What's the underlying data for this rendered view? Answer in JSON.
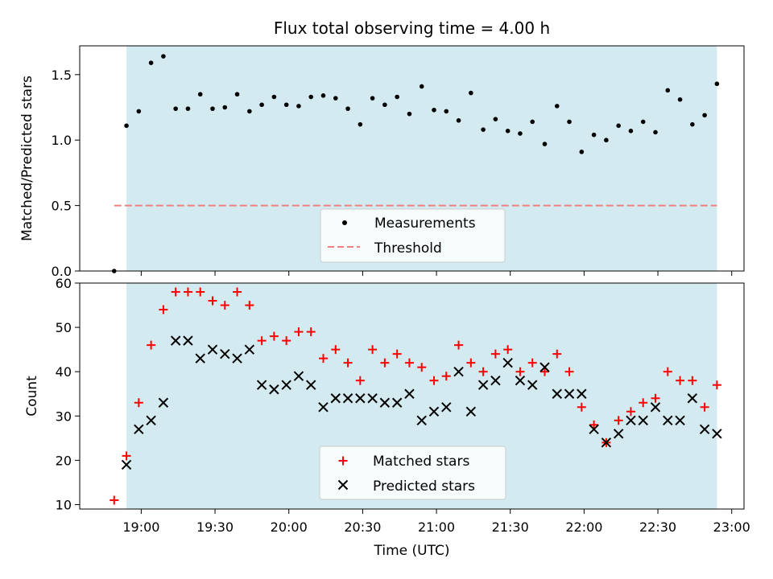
{
  "chart_data": [
    {
      "type": "scatter",
      "title": "Flux total observing time = 4.00 h",
      "ylabel": "Matched/Predicted stars",
      "xlabel": "",
      "xlim_minutes": [
        1115,
        1385
      ],
      "ylim": [
        0,
        1.72
      ],
      "yticks": [
        0.0,
        0.5,
        1.0,
        1.5
      ],
      "ytick_labels": [
        "0.0",
        "0.5",
        "1.0",
        "1.5"
      ],
      "observing_window_minutes": [
        1134,
        1374
      ],
      "threshold": 0.5,
      "shade_color": "#d3eaf0",
      "threshold_color": "#f08080",
      "x_minutes": [
        1134,
        1139,
        1144,
        1149,
        1154,
        1159,
        1164,
        1169,
        1174,
        1179,
        1184,
        1189,
        1194,
        1199,
        1204,
        1209,
        1214,
        1219,
        1224,
        1229,
        1234,
        1239,
        1244,
        1249,
        1254,
        1259,
        1264,
        1269,
        1274,
        1279,
        1284,
        1289,
        1294,
        1299,
        1304,
        1309,
        1314,
        1319,
        1324,
        1329,
        1334,
        1339,
        1344,
        1349,
        1354,
        1359,
        1364,
        1369,
        1374
      ],
      "series": [
        {
          "name": "Measurements",
          "color": "#000000",
          "marker": "dot",
          "points": [
            [
              1129,
              0.0
            ],
            [
              1134,
              1.11
            ],
            [
              1139,
              1.22
            ],
            [
              1144,
              1.59
            ],
            [
              1149,
              1.64
            ],
            [
              1154,
              1.24
            ],
            [
              1159,
              1.24
            ],
            [
              1164,
              1.35
            ],
            [
              1169,
              1.24
            ],
            [
              1174,
              1.25
            ],
            [
              1179,
              1.35
            ],
            [
              1184,
              1.22
            ],
            [
              1189,
              1.27
            ],
            [
              1194,
              1.33
            ],
            [
              1199,
              1.27
            ],
            [
              1204,
              1.26
            ],
            [
              1209,
              1.33
            ],
            [
              1214,
              1.34
            ],
            [
              1219,
              1.32
            ],
            [
              1224,
              1.24
            ],
            [
              1229,
              1.12
            ],
            [
              1234,
              1.32
            ],
            [
              1239,
              1.27
            ],
            [
              1244,
              1.33
            ],
            [
              1249,
              1.2
            ],
            [
              1254,
              1.41
            ],
            [
              1259,
              1.23
            ],
            [
              1264,
              1.22
            ],
            [
              1269,
              1.15
            ],
            [
              1274,
              1.36
            ],
            [
              1279,
              1.08
            ],
            [
              1284,
              1.16
            ],
            [
              1289,
              1.07
            ],
            [
              1294,
              1.05
            ],
            [
              1299,
              1.14
            ],
            [
              1304,
              0.97
            ],
            [
              1309,
              1.26
            ],
            [
              1314,
              1.14
            ],
            [
              1319,
              0.91
            ],
            [
              1324,
              1.04
            ],
            [
              1329,
              1.0
            ],
            [
              1334,
              1.11
            ],
            [
              1339,
              1.07
            ],
            [
              1344,
              1.14
            ],
            [
              1349,
              1.06
            ],
            [
              1354,
              1.38
            ],
            [
              1359,
              1.31
            ],
            [
              1364,
              1.12
            ],
            [
              1369,
              1.19
            ],
            [
              1374,
              1.43
            ]
          ]
        },
        {
          "name": "Threshold",
          "color": "#f08080",
          "marker": "dashed-line",
          "points": [
            [
              1129,
              0.5
            ],
            [
              1374,
              0.5
            ]
          ]
        }
      ],
      "legend": {
        "placement": "bottom-center",
        "entries": [
          "Measurements",
          "Threshold"
        ]
      }
    },
    {
      "type": "scatter",
      "title": "",
      "ylabel": "Count",
      "xlabel": "Time (UTC)",
      "xlim_minutes": [
        1115,
        1385
      ],
      "ylim": [
        9,
        60
      ],
      "yticks": [
        10,
        20,
        30,
        40,
        50,
        60
      ],
      "ytick_labels": [
        "10",
        "20",
        "30",
        "40",
        "50",
        "60"
      ],
      "xticks_minutes": [
        1140,
        1170,
        1200,
        1230,
        1260,
        1290,
        1320,
        1350,
        1380
      ],
      "xtick_labels": [
        "19:00",
        "19:30",
        "20:00",
        "20:30",
        "21:00",
        "21:30",
        "22:00",
        "22:30",
        "23:00"
      ],
      "observing_window_minutes": [
        1134,
        1374
      ],
      "shade_color": "#d3eaf0",
      "series": [
        {
          "name": "Matched stars",
          "color": "#ff0000",
          "marker": "plus",
          "points": [
            [
              1129,
              11
            ],
            [
              1134,
              21
            ],
            [
              1139,
              33
            ],
            [
              1144,
              46
            ],
            [
              1149,
              54
            ],
            [
              1154,
              58
            ],
            [
              1159,
              58
            ],
            [
              1164,
              58
            ],
            [
              1169,
              56
            ],
            [
              1174,
              55
            ],
            [
              1179,
              58
            ],
            [
              1184,
              55
            ],
            [
              1189,
              47
            ],
            [
              1194,
              48
            ],
            [
              1199,
              47
            ],
            [
              1204,
              49
            ],
            [
              1209,
              49
            ],
            [
              1214,
              43
            ],
            [
              1219,
              45
            ],
            [
              1224,
              42
            ],
            [
              1229,
              38
            ],
            [
              1234,
              45
            ],
            [
              1239,
              42
            ],
            [
              1244,
              44
            ],
            [
              1249,
              42
            ],
            [
              1254,
              41
            ],
            [
              1259,
              38
            ],
            [
              1264,
              39
            ],
            [
              1269,
              46
            ],
            [
              1274,
              42
            ],
            [
              1279,
              40
            ],
            [
              1284,
              44
            ],
            [
              1289,
              45
            ],
            [
              1294,
              40
            ],
            [
              1299,
              42
            ],
            [
              1304,
              40
            ],
            [
              1309,
              44
            ],
            [
              1314,
              40
            ],
            [
              1319,
              32
            ],
            [
              1324,
              28
            ],
            [
              1329,
              24
            ],
            [
              1334,
              29
            ],
            [
              1339,
              31
            ],
            [
              1344,
              33
            ],
            [
              1349,
              34
            ],
            [
              1354,
              40
            ],
            [
              1359,
              38
            ],
            [
              1364,
              38
            ],
            [
              1369,
              32
            ],
            [
              1374,
              37
            ]
          ]
        },
        {
          "name": "Predicted stars",
          "color": "#000000",
          "marker": "x",
          "points": [
            [
              1134,
              19
            ],
            [
              1139,
              27
            ],
            [
              1144,
              29
            ],
            [
              1149,
              33
            ],
            [
              1154,
              47
            ],
            [
              1159,
              47
            ],
            [
              1164,
              43
            ],
            [
              1169,
              45
            ],
            [
              1174,
              44
            ],
            [
              1179,
              43
            ],
            [
              1184,
              45
            ],
            [
              1189,
              37
            ],
            [
              1194,
              36
            ],
            [
              1199,
              37
            ],
            [
              1204,
              39
            ],
            [
              1209,
              37
            ],
            [
              1214,
              32
            ],
            [
              1219,
              34
            ],
            [
              1224,
              34
            ],
            [
              1229,
              34
            ],
            [
              1234,
              34
            ],
            [
              1239,
              33
            ],
            [
              1244,
              33
            ],
            [
              1249,
              35
            ],
            [
              1254,
              29
            ],
            [
              1259,
              31
            ],
            [
              1264,
              32
            ],
            [
              1269,
              40
            ],
            [
              1274,
              31
            ],
            [
              1279,
              37
            ],
            [
              1284,
              38
            ],
            [
              1289,
              42
            ],
            [
              1294,
              38
            ],
            [
              1299,
              37
            ],
            [
              1304,
              41
            ],
            [
              1309,
              35
            ],
            [
              1314,
              35
            ],
            [
              1319,
              35
            ],
            [
              1324,
              27
            ],
            [
              1329,
              24
            ],
            [
              1334,
              26
            ],
            [
              1339,
              29
            ],
            [
              1344,
              29
            ],
            [
              1349,
              32
            ],
            [
              1354,
              29
            ],
            [
              1359,
              29
            ],
            [
              1364,
              34
            ],
            [
              1369,
              27
            ],
            [
              1374,
              26
            ]
          ]
        }
      ],
      "legend": {
        "placement": "bottom-center",
        "entries": [
          "Matched stars",
          "Predicted stars"
        ]
      }
    }
  ]
}
